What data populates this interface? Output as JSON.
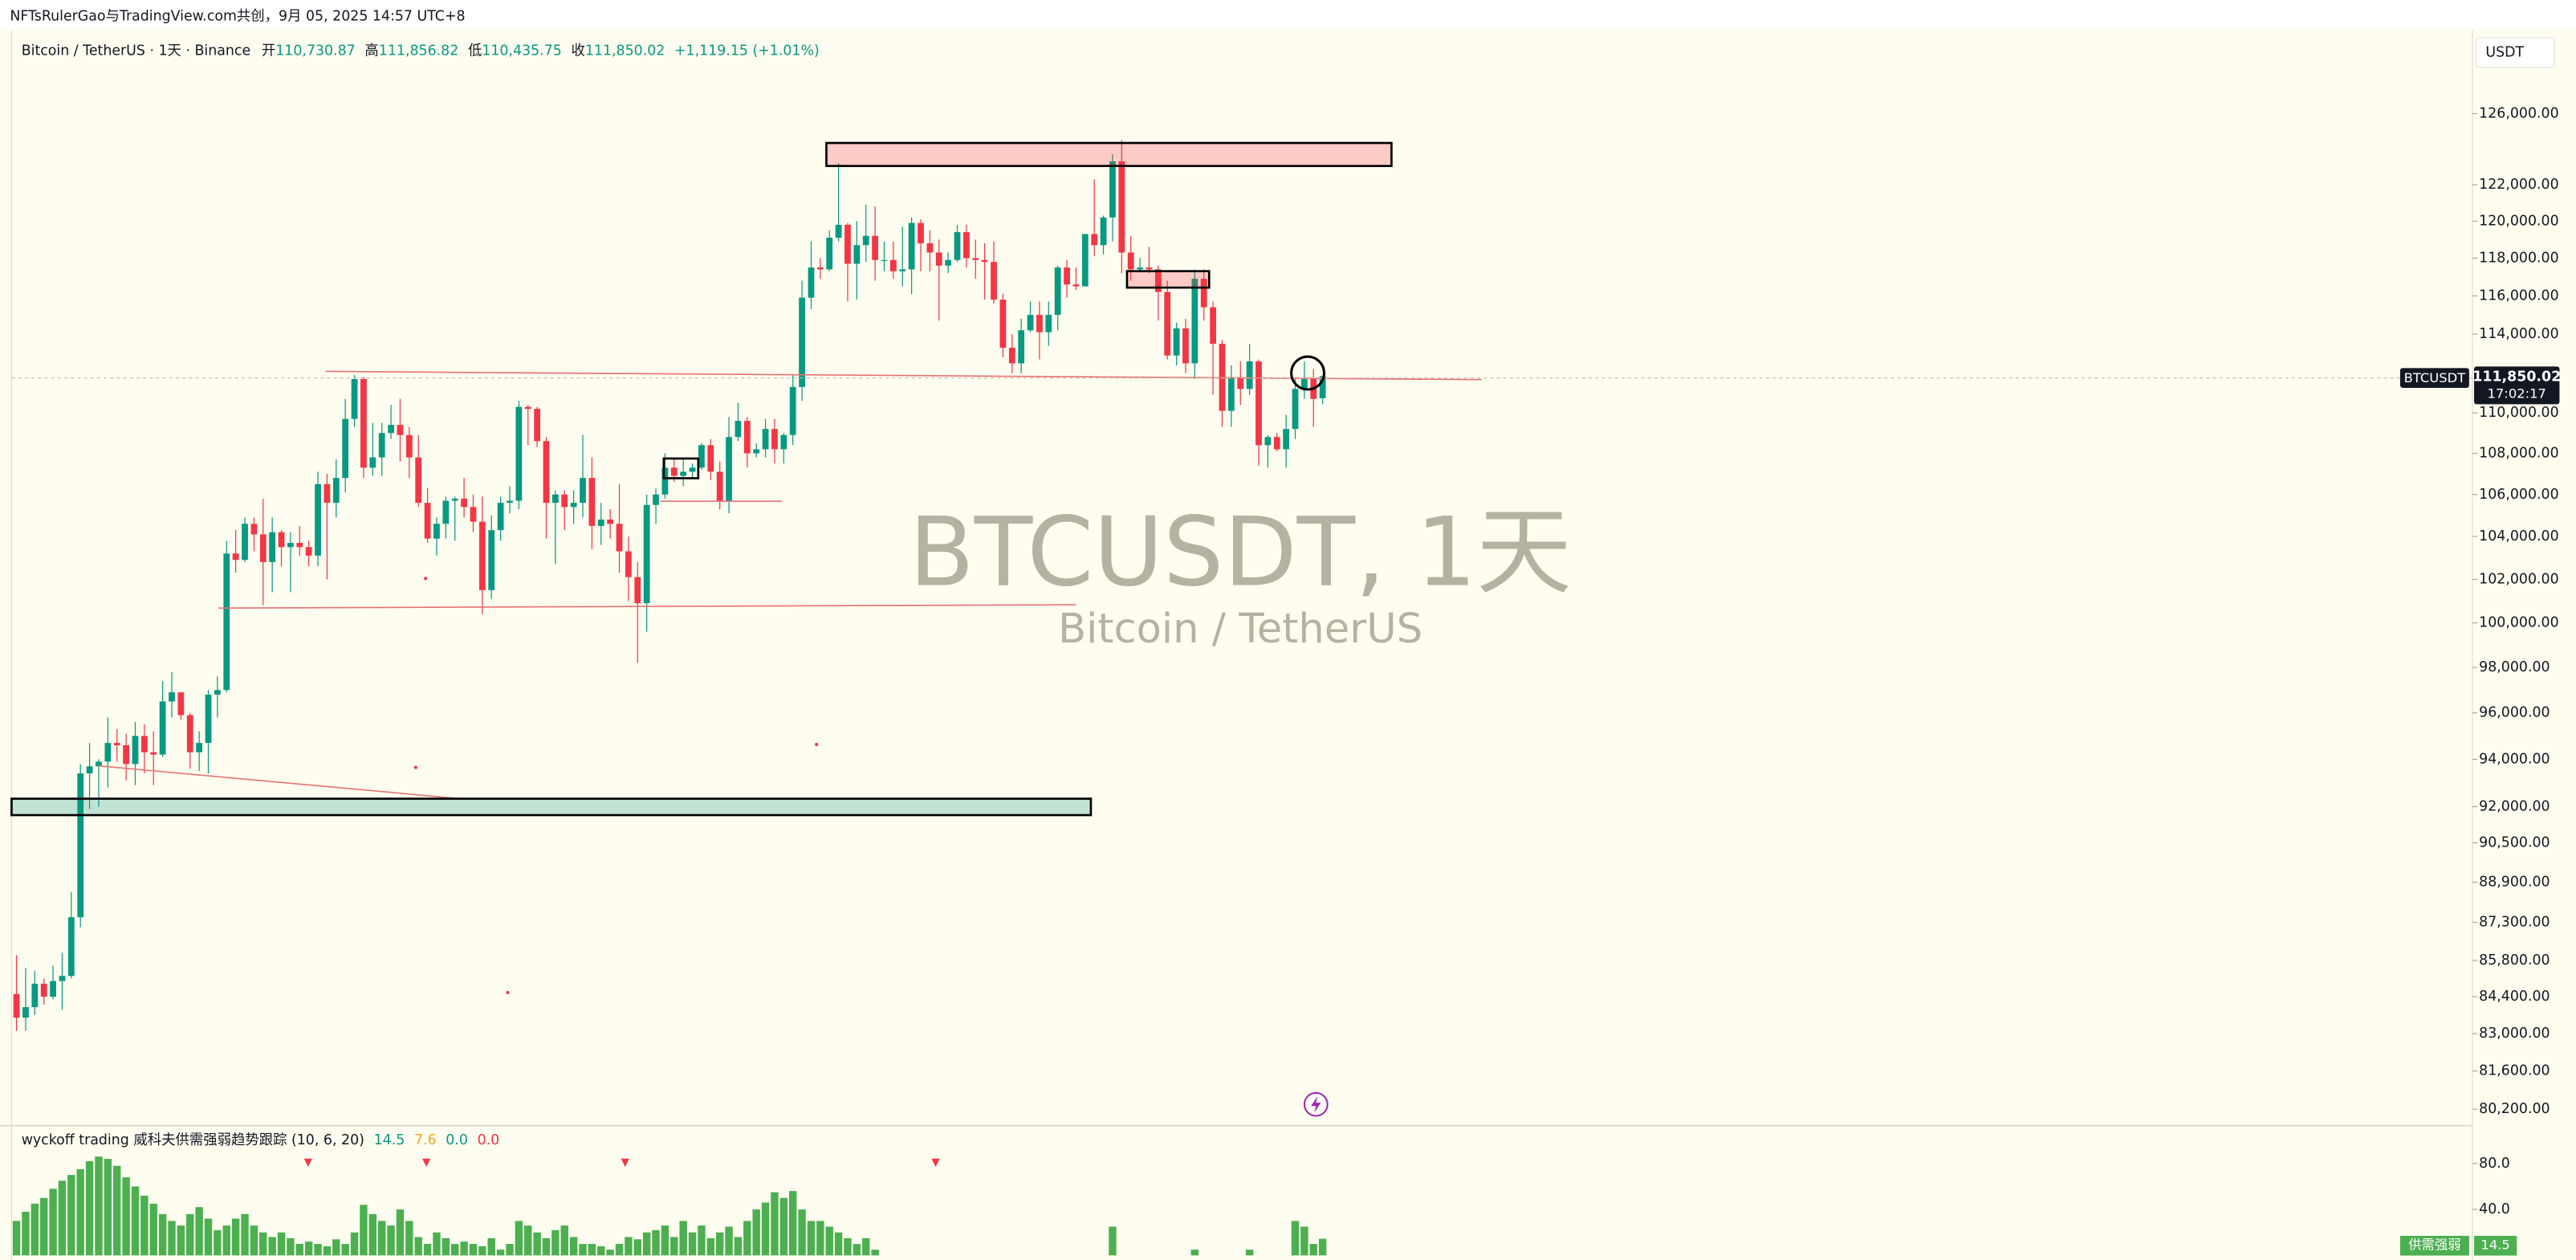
{
  "header": {
    "attribution": "NFTsRulerGao与TradingView.com共创，9月 05, 2025 14:57 UTC+8",
    "symbol": "Bitcoin / TetherUS · 1天 · Binance",
    "open_label": "开",
    "open": "110,730.87",
    "high_label": "高",
    "high": "111,856.82",
    "low_label": "低",
    "low": "110,435.75",
    "close_label": "收",
    "close": "111,850.02",
    "change": "+1,119.15 (+1.01%)",
    "currency": "USDT"
  },
  "watermark": {
    "title": "BTCUSDT, 1天",
    "subtitle": "Bitcoin / TetherUS"
  },
  "price_tag": {
    "symbol": "BTCUSDT",
    "price": "111,850.02",
    "countdown": "17:02:17"
  },
  "chart_data": [
    {
      "type": "candlestick",
      "log_scale": true,
      "up_color": "#089981",
      "down_color": "#f23645",
      "ylim": [
        79600,
        130700
      ],
      "yticks": [
        {
          "value": 126000,
          "label": "126,000.00"
        },
        {
          "value": 122000,
          "label": "122,000.00"
        },
        {
          "value": 120000,
          "label": "120,000.00"
        },
        {
          "value": 118000,
          "label": "118,000.00"
        },
        {
          "value": 116000,
          "label": "116,000.00"
        },
        {
          "value": 114000,
          "label": "114,000.00"
        },
        {
          "value": 110000,
          "label": "110,000.00"
        },
        {
          "value": 108000,
          "label": "108,000.00"
        },
        {
          "value": 106000,
          "label": "106,000.00"
        },
        {
          "value": 104000,
          "label": "104,000.00"
        },
        {
          "value": 102000,
          "label": "102,000.00"
        },
        {
          "value": 100000,
          "label": "100,000.00"
        },
        {
          "value": 98000,
          "label": "98,000.00"
        },
        {
          "value": 96000,
          "label": "96,000.00"
        },
        {
          "value": 94000,
          "label": "94,000.00"
        },
        {
          "value": 92000,
          "label": "92,000.00"
        },
        {
          "value": 90500,
          "label": "90,500.00"
        },
        {
          "value": 88900,
          "label": "88,900.00"
        },
        {
          "value": 87300,
          "label": "87,300.00"
        },
        {
          "value": 85800,
          "label": "85,800.00"
        },
        {
          "value": 84400,
          "label": "84,400.00"
        },
        {
          "value": 83000,
          "label": "83,000.00"
        },
        {
          "value": 81600,
          "label": "81,600.00"
        },
        {
          "value": 80200,
          "label": "80,200.00"
        }
      ],
      "ohlc": [
        [
          84500,
          86000,
          83100,
          83600
        ],
        [
          83600,
          85500,
          83100,
          84000
        ],
        [
          84000,
          85400,
          83700,
          84900
        ],
        [
          84900,
          85100,
          84100,
          84400
        ],
        [
          84400,
          85600,
          84300,
          85000
        ],
        [
          85000,
          86100,
          83900,
          85200
        ],
        [
          85200,
          88500,
          85100,
          87500
        ],
        [
          87500,
          93800,
          87100,
          93400
        ],
        [
          93400,
          94700,
          91900,
          93700
        ],
        [
          93700,
          94000,
          92000,
          93900
        ],
        [
          93900,
          95800,
          92800,
          94700
        ],
        [
          94700,
          95300,
          93900,
          94600
        ],
        [
          94600,
          95100,
          93100,
          93800
        ],
        [
          93800,
          95600,
          92900,
          95000
        ],
        [
          95000,
          95500,
          93400,
          94300
        ],
        [
          94300,
          95200,
          92900,
          94200
        ],
        [
          94200,
          97400,
          94100,
          96500
        ],
        [
          96500,
          97800,
          95800,
          96900
        ],
        [
          96900,
          96900,
          95700,
          95900
        ],
        [
          95900,
          96000,
          93600,
          94300
        ],
        [
          94300,
          95200,
          93500,
          94700
        ],
        [
          94700,
          97000,
          93400,
          96800
        ],
        [
          96800,
          97600,
          95800,
          97000
        ],
        [
          97000,
          103800,
          96900,
          103200
        ],
        [
          103200,
          104300,
          102300,
          102900
        ],
        [
          102900,
          104900,
          102800,
          104600
        ],
        [
          104600,
          104900,
          103300,
          104100
        ],
        [
          104100,
          105800,
          100800,
          102800
        ],
        [
          102800,
          104900,
          101400,
          104200
        ],
        [
          104200,
          104300,
          102600,
          103500
        ],
        [
          103500,
          104200,
          101400,
          103700
        ],
        [
          103700,
          104500,
          103100,
          103500
        ],
        [
          103500,
          103800,
          102600,
          103100
        ],
        [
          103100,
          107100,
          102600,
          106500
        ],
        [
          106500,
          107000,
          102000,
          105600
        ],
        [
          105600,
          107700,
          104900,
          106800
        ],
        [
          106800,
          110700,
          106100,
          109700
        ],
        [
          109700,
          111900,
          109300,
          111700
        ],
        [
          111700,
          111800,
          106800,
          107300
        ],
        [
          107300,
          109500,
          106900,
          107800
        ],
        [
          107800,
          109500,
          106900,
          109000
        ],
        [
          109000,
          110400,
          108700,
          109400
        ],
        [
          109400,
          110700,
          107600,
          108900
        ],
        [
          108900,
          109300,
          106800,
          107800
        ],
        [
          107800,
          108900,
          105400,
          105600
        ],
        [
          105600,
          106300,
          103700,
          103900
        ],
        [
          103900,
          104900,
          103100,
          104600
        ],
        [
          104600,
          105900,
          103900,
          105700
        ],
        [
          105700,
          105900,
          103800,
          105800
        ],
        [
          105800,
          106800,
          104900,
          105400
        ],
        [
          105400,
          106000,
          104200,
          104700
        ],
        [
          104700,
          105900,
          100400,
          101500
        ],
        [
          101500,
          105000,
          101100,
          104300
        ],
        [
          104300,
          105900,
          103800,
          105600
        ],
        [
          105600,
          106400,
          105100,
          105700
        ],
        [
          105700,
          110600,
          105300,
          110300
        ],
        [
          110300,
          110400,
          108400,
          110200
        ],
        [
          110200,
          110300,
          108300,
          108600
        ],
        [
          108600,
          108800,
          103900,
          105600
        ],
        [
          105600,
          106200,
          102700,
          106000
        ],
        [
          106000,
          106200,
          104300,
          105400
        ],
        [
          105400,
          106200,
          104600,
          105600
        ],
        [
          105600,
          108900,
          104900,
          106800
        ],
        [
          106800,
          107800,
          103400,
          104500
        ],
        [
          104500,
          105600,
          103600,
          104800
        ],
        [
          104800,
          105300,
          103900,
          104600
        ],
        [
          104600,
          106500,
          102300,
          103300
        ],
        [
          103300,
          104000,
          101000,
          102100
        ],
        [
          102100,
          102800,
          98200,
          100900
        ],
        [
          100900,
          106000,
          99600,
          105500
        ],
        [
          105500,
          106300,
          104600,
          106000
        ],
        [
          106000,
          108000,
          105800,
          107300
        ],
        [
          107300,
          107800,
          106600,
          106900
        ],
        [
          106900,
          107800,
          106400,
          107100
        ],
        [
          107100,
          107500,
          106800,
          107300
        ],
        [
          107300,
          108500,
          107200,
          108400
        ],
        [
          108400,
          108700,
          106700,
          107100
        ],
        [
          107100,
          107600,
          105300,
          105700
        ],
        [
          105700,
          109800,
          105100,
          108800
        ],
        [
          108800,
          110500,
          108600,
          109600
        ],
        [
          109600,
          109800,
          107300,
          108000
        ],
        [
          108000,
          108500,
          107800,
          108200
        ],
        [
          108200,
          109700,
          107800,
          109200
        ],
        [
          109200,
          109700,
          107500,
          108200
        ],
        [
          108200,
          109000,
          107500,
          108900
        ],
        [
          108900,
          111900,
          108400,
          111300
        ],
        [
          111300,
          116800,
          110600,
          115900
        ],
        [
          115900,
          118900,
          115300,
          117500
        ],
        [
          117500,
          118000,
          116900,
          117400
        ],
        [
          117400,
          119500,
          117300,
          119100
        ],
        [
          119100,
          123200,
          118900,
          119800
        ],
        [
          119800,
          119900,
          115700,
          117700
        ],
        [
          117700,
          120000,
          115800,
          118700
        ],
        [
          118700,
          120900,
          117800,
          119200
        ],
        [
          119200,
          120800,
          116800,
          117900
        ],
        [
          117900,
          118900,
          117300,
          117900
        ],
        [
          117900,
          118900,
          116900,
          117300
        ],
        [
          117300,
          119700,
          116500,
          117400
        ],
        [
          117400,
          120200,
          116100,
          119900
        ],
        [
          119900,
          120100,
          117300,
          118800
        ],
        [
          118800,
          119500,
          117300,
          118300
        ],
        [
          118300,
          119000,
          114700,
          117600
        ],
        [
          117600,
          118300,
          117200,
          117900
        ],
        [
          117900,
          119800,
          117800,
          119400
        ],
        [
          119400,
          119800,
          117500,
          118000
        ],
        [
          118000,
          119000,
          116900,
          117900
        ],
        [
          117900,
          118800,
          115800,
          117800
        ],
        [
          117800,
          118900,
          115600,
          115800
        ],
        [
          115800,
          116100,
          112800,
          113300
        ],
        [
          113300,
          114000,
          112000,
          112500
        ],
        [
          112500,
          114800,
          112000,
          114200
        ],
        [
          114200,
          115700,
          114100,
          115000
        ],
        [
          115000,
          115700,
          112700,
          114100
        ],
        [
          114100,
          115700,
          113400,
          115000
        ],
        [
          115000,
          117600,
          114200,
          117500
        ],
        [
          117500,
          117900,
          115900,
          116600
        ],
        [
          116600,
          117500,
          116300,
          116500
        ],
        [
          116500,
          119300,
          116500,
          119300
        ],
        [
          119300,
          122300,
          118100,
          118700
        ],
        [
          118700,
          120300,
          118200,
          120200
        ],
        [
          120200,
          123700,
          118900,
          123300
        ],
        [
          123300,
          124500,
          117200,
          118300
        ],
        [
          118300,
          119200,
          116800,
          117400
        ],
        [
          117400,
          118000,
          117300,
          117500
        ],
        [
          117500,
          118600,
          117200,
          117400
        ],
        [
          117400,
          117600,
          114700,
          116200
        ],
        [
          116200,
          116800,
          112700,
          112900
        ],
        [
          112900,
          114600,
          112400,
          114300
        ],
        [
          114300,
          114800,
          112000,
          112500
        ],
        [
          112500,
          117400,
          111700,
          116900
        ],
        [
          116900,
          117400,
          114700,
          115400
        ],
        [
          115400,
          115700,
          110900,
          113500
        ],
        [
          113500,
          113700,
          109300,
          110100
        ],
        [
          110100,
          112400,
          109300,
          111800
        ],
        [
          111800,
          112600,
          110400,
          111200
        ],
        [
          111200,
          113500,
          110900,
          112600
        ],
        [
          112600,
          112700,
          107400,
          108400
        ],
        [
          108400,
          108900,
          107300,
          108800
        ],
        [
          108800,
          109000,
          108100,
          108200
        ],
        [
          108200,
          109900,
          107300,
          109200
        ],
        [
          109200,
          111800,
          108700,
          111200
        ],
        [
          111200,
          112600,
          110700,
          111700
        ],
        [
          111700,
          112200,
          109300,
          110700
        ],
        [
          110730.87,
          111856.82,
          110435.75,
          111850.02
        ]
      ]
    },
    {
      "type": "bar",
      "title": "wyckoff trading 威科夫供需强弱趋势跟踪 (10, 6, 20)",
      "legend_values": [
        "14.5",
        "7.6",
        "0.0",
        "0.0"
      ],
      "color": "#4caf50",
      "ylim": [
        -4,
        110
      ],
      "yticks": [
        {
          "value": 80,
          "label": "80.0"
        },
        {
          "value": 40,
          "label": "40.0"
        }
      ],
      "tag_label": "供需强弱",
      "tag_value": "14.5",
      "values": [
        30,
        38,
        45,
        50,
        58,
        65,
        70,
        75,
        82,
        86,
        84,
        78,
        68,
        60,
        52,
        45,
        36,
        30,
        26,
        36,
        42,
        32,
        22,
        26,
        32,
        36,
        26,
        20,
        16,
        20,
        15,
        10,
        12,
        10,
        8,
        14,
        10,
        20,
        44,
        36,
        30,
        26,
        40,
        30,
        16,
        10,
        20,
        15,
        10,
        12,
        10,
        8,
        15,
        5,
        10,
        30,
        26,
        20,
        15,
        22,
        26,
        16,
        10,
        10,
        8,
        5,
        10,
        16,
        14,
        20,
        22,
        26,
        16,
        30,
        20,
        26,
        15,
        20,
        25,
        16,
        30,
        40,
        46,
        55,
        50,
        56,
        40,
        30,
        30,
        25,
        20,
        15,
        10,
        15,
        5,
        0,
        0,
        0,
        0,
        0,
        0,
        0,
        0,
        0,
        0,
        0,
        0,
        0,
        0,
        0,
        0,
        0,
        0,
        0,
        0,
        0,
        0,
        0,
        0,
        0,
        25,
        0,
        0,
        0,
        0,
        0,
        0,
        0,
        0,
        5,
        0,
        0,
        0,
        0,
        0,
        5,
        0,
        0,
        0,
        0,
        30,
        25,
        10,
        14.5
      ]
    }
  ]
}
